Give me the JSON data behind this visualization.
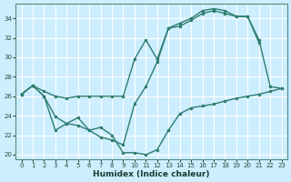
{
  "xlabel": "Humidex (Indice chaleur)",
  "bg_color": "#cceeff",
  "line_color": "#2e7d6e",
  "grid_color": "#ffffff",
  "xlim": [
    -0.5,
    23.5
  ],
  "ylim": [
    19.5,
    35.5
  ],
  "yticks": [
    20,
    22,
    24,
    26,
    28,
    30,
    32,
    34
  ],
  "xticks": [
    0,
    1,
    2,
    3,
    4,
    5,
    6,
    7,
    8,
    9,
    10,
    11,
    12,
    13,
    14,
    15,
    16,
    17,
    18,
    19,
    20,
    21,
    22,
    23
  ],
  "line_top_x": [
    0,
    1,
    2,
    3,
    4,
    5,
    6,
    7,
    8,
    9,
    10,
    11,
    12,
    13,
    14,
    15,
    16,
    17,
    18,
    19,
    20,
    21,
    22,
    23
  ],
  "line_top_y": [
    26.2,
    27.1,
    26.5,
    26.0,
    25.8,
    26.0,
    26.0,
    26.0,
    26.0,
    26.0,
    29.8,
    31.8,
    29.8,
    33.0,
    33.5,
    34.0,
    34.8,
    35.0,
    34.8,
    34.2,
    34.2,
    31.8,
    27.0,
    26.8
  ],
  "line_mid_x": [
    0,
    1,
    2,
    3,
    4,
    5,
    6,
    7,
    8,
    9,
    10,
    11,
    12,
    13,
    14,
    15,
    16,
    17,
    18,
    19,
    20,
    21
  ],
  "line_mid_y": [
    26.2,
    27.1,
    26.0,
    22.5,
    23.2,
    23.0,
    22.5,
    21.8,
    21.5,
    21.0,
    25.2,
    27.0,
    29.5,
    33.0,
    33.2,
    33.8,
    34.5,
    34.8,
    34.5,
    34.2,
    34.2,
    31.5
  ],
  "line_bot_x": [
    0,
    1,
    2,
    3,
    4,
    5,
    6,
    7,
    8,
    9,
    10,
    11,
    12,
    13,
    14,
    15,
    16,
    17,
    18,
    19,
    20,
    21,
    22,
    23
  ],
  "line_bot_y": [
    26.2,
    27.1,
    26.0,
    23.9,
    23.2,
    23.8,
    22.5,
    22.8,
    22.0,
    20.2,
    20.2,
    20.0,
    20.5,
    22.5,
    24.2,
    24.8,
    25.0,
    25.2,
    25.5,
    25.8,
    26.0,
    26.2,
    26.5,
    26.8
  ]
}
